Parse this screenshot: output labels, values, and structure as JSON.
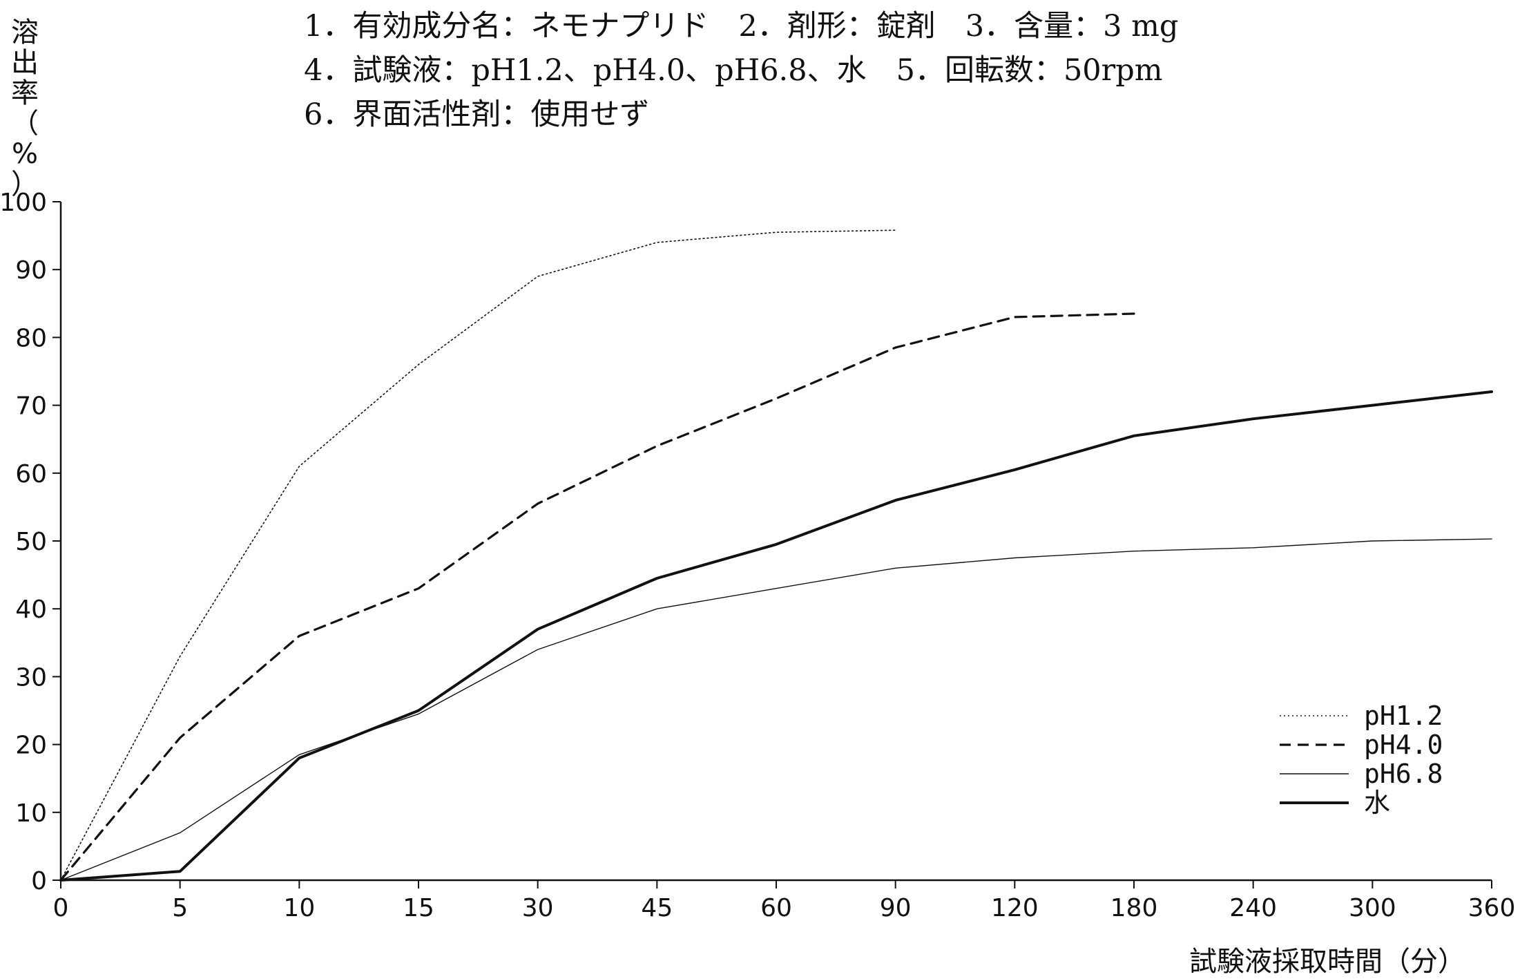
{
  "header": {
    "lines": [
      "1．有効成分名：ネモナプリド　2．剤形：錠剤　3．含量：3 mg",
      "4．試験液：pH1.2、pH4.0、pH6.8、水　5．回転数：50rpm",
      "6．界面活性剤：使用せず"
    ]
  },
  "chart_data": {
    "type": "line",
    "title": "",
    "xlabel": "試験液採取時間（分）",
    "ylabel_chars": [
      "溶",
      "出",
      "率",
      "（",
      "%",
      "）"
    ],
    "categories": [
      "0",
      "5",
      "10",
      "15",
      "30",
      "45",
      "60",
      "90",
      "120",
      "180",
      "240",
      "300",
      "360"
    ],
    "ylim": [
      0,
      100
    ],
    "yticks": [
      "0",
      "10",
      "20",
      "30",
      "40",
      "50",
      "60",
      "70",
      "80",
      "90",
      "100"
    ],
    "grid": false,
    "legend_position": "lower-right",
    "series": [
      {
        "name": "pH1.2",
        "style": "dotted",
        "color": "#111111",
        "values": [
          0,
          33,
          61,
          76,
          89,
          94,
          95.5,
          95.8,
          null,
          null,
          null,
          null,
          null
        ]
      },
      {
        "name": "pH4.0",
        "style": "dashed",
        "color": "#111111",
        "values": [
          0,
          21,
          36,
          43,
          55.5,
          64,
          71,
          78.5,
          83,
          83.5,
          null,
          null,
          null
        ]
      },
      {
        "name": "pH6.8",
        "style": "thin",
        "color": "#111111",
        "values": [
          0,
          7,
          18.5,
          24.5,
          34,
          40,
          43,
          46,
          47.5,
          48.5,
          49,
          50,
          50.3
        ]
      },
      {
        "name": "水",
        "style": "thick",
        "color": "#111111",
        "values": [
          0,
          1.3,
          18,
          25,
          37,
          44.5,
          49.5,
          56,
          60.5,
          65.5,
          68,
          70,
          72
        ]
      }
    ]
  }
}
